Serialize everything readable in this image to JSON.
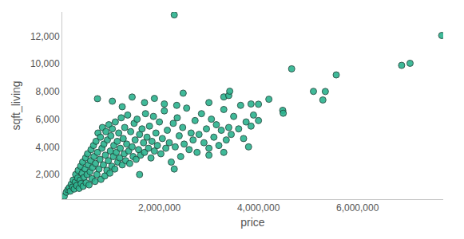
{
  "chart_data": {
    "type": "scatter",
    "x_label": "price",
    "y_label": "sqft_living",
    "color": "#2bb38e",
    "marker": "circle",
    "grid": false,
    "xlim": [
      40000,
      7730000
    ],
    "ylim": [
      220,
      13750
    ],
    "xticks": [
      {
        "value": 2000000,
        "label": "2,000,000"
      },
      {
        "value": 4000000,
        "label": "4,000,000"
      },
      {
        "value": 6000000,
        "label": "6,000,000"
      }
    ],
    "yticks": [
      {
        "value": 2000,
        "label": "2,000"
      },
      {
        "value": 4000,
        "label": "4,000"
      },
      {
        "value": 6000,
        "label": "6,000"
      },
      {
        "value": 8000,
        "label": "8,000"
      },
      {
        "value": 10000,
        "label": "10,000"
      },
      {
        "value": 12000,
        "label": "12,000"
      }
    ],
    "x": [
      80000,
      120000,
      150000,
      180000,
      200000,
      220000,
      250000,
      260000,
      280000,
      300000,
      310000,
      330000,
      350000,
      360000,
      380000,
      400000,
      410000,
      420000,
      440000,
      450000,
      460000,
      480000,
      500000,
      510000,
      520000,
      540000,
      550000,
      560000,
      580000,
      600000,
      610000,
      620000,
      640000,
      650000,
      670000,
      680000,
      700000,
      710000,
      720000,
      740000,
      750000,
      760000,
      780000,
      800000,
      810000,
      820000,
      840000,
      850000,
      870000,
      880000,
      900000,
      910000,
      920000,
      940000,
      950000,
      970000,
      980000,
      1000000,
      1010000,
      1020000,
      1040000,
      1050000,
      1070000,
      1080000,
      1100000,
      1110000,
      1130000,
      1150000,
      1160000,
      1180000,
      1200000,
      1210000,
      1230000,
      1250000,
      1270000,
      1290000,
      1300000,
      1320000,
      1340000,
      1360000,
      1380000,
      1400000,
      1420000,
      1450000,
      1470000,
      1490000,
      1510000,
      1530000,
      1550000,
      1580000,
      1600000,
      1620000,
      1650000,
      1680000,
      1700000,
      1720000,
      1750000,
      1780000,
      1800000,
      1830000,
      1850000,
      1880000,
      1900000,
      1930000,
      1960000,
      2000000,
      2030000,
      2060000,
      2100000,
      2130000,
      2160000,
      2200000,
      2240000,
      2280000,
      2320000,
      2360000,
      2400000,
      2430000,
      2470000,
      2500000,
      2550000,
      2600000,
      2640000,
      2680000,
      2720000,
      2760000,
      2800000,
      2850000,
      2900000,
      2950000,
      3000000,
      3050000,
      3100000,
      3150000,
      3200000,
      3250000,
      3300000,
      3350000,
      3400000,
      3450000,
      3500000,
      3600000,
      3700000,
      3750000,
      3850000,
      3900000,
      4000000,
      750000,
      1050000,
      1250000,
      1450000,
      1700000,
      1900000,
      2100000,
      2350000,
      2480000,
      2300000,
      3000000,
      3300000,
      3400000,
      3420000,
      3640000,
      3850000,
      4000000,
      4210000,
      4490000,
      4500000,
      4670000,
      5110000,
      5300000,
      5350000,
      5570000,
      6890000,
      7060000,
      7700000,
      1600000,
      2300000,
      3000000,
      3300000,
      3800000
    ],
    "values": [
      430,
      720,
      900,
      1050,
      800,
      1300,
      1100,
      1600,
      950,
      1450,
      2000,
      1200,
      1750,
      2300,
      1000,
      1600,
      2600,
      1350,
      2100,
      2900,
      1150,
      1800,
      2400,
      3200,
      1400,
      2000,
      3500,
      2700,
      1250,
      2200,
      3000,
      3800,
      1700,
      2500,
      4100,
      3300,
      1500,
      2800,
      4400,
      2000,
      3600,
      5000,
      2400,
      3100,
      4700,
      1650,
      3900,
      5400,
      2700,
      4200,
      1900,
      3400,
      5100,
      2300,
      4500,
      3000,
      5600,
      2100,
      3700,
      4800,
      2600,
      5300,
      3300,
      4100,
      2400,
      5800,
      3600,
      4400,
      2900,
      5000,
      3200,
      3900,
      6100,
      2700,
      4600,
      3500,
      5400,
      3000,
      4200,
      6300,
      3700,
      2800,
      5100,
      4000,
      3300,
      5700,
      4500,
      3100,
      6000,
      3800,
      4900,
      3400,
      5300,
      4300,
      3600,
      6400,
      4700,
      3900,
      5500,
      3200,
      4400,
      6200,
      3700,
      5000,
      4100,
      5800,
      3500,
      4600,
      6600,
      3900,
      5200,
      4300,
      2900,
      5700,
      4000,
      6100,
      4800,
      3300,
      5400,
      4200,
      6800,
      3800,
      5000,
      4500,
      5900,
      3600,
      4900,
      6400,
      4300,
      5300,
      3900,
      6000,
      4700,
      5600,
      4100,
      5200,
      6700,
      4500,
      5400,
      4900,
      6200,
      5300,
      4600,
      5800,
      5500,
      6300,
      5900,
      7480,
      7300,
      6900,
      7600,
      7200,
      7500,
      7100,
      7000,
      7880,
      13540,
      7200,
      7610,
      7710,
      8020,
      7000,
      7100,
      7080,
      7440,
      6640,
      6430,
      9640,
      8010,
      7390,
      8000,
      9200,
      9890,
      10040,
      12050,
      2000,
      2400,
      3400,
      3600,
      4000
    ]
  }
}
